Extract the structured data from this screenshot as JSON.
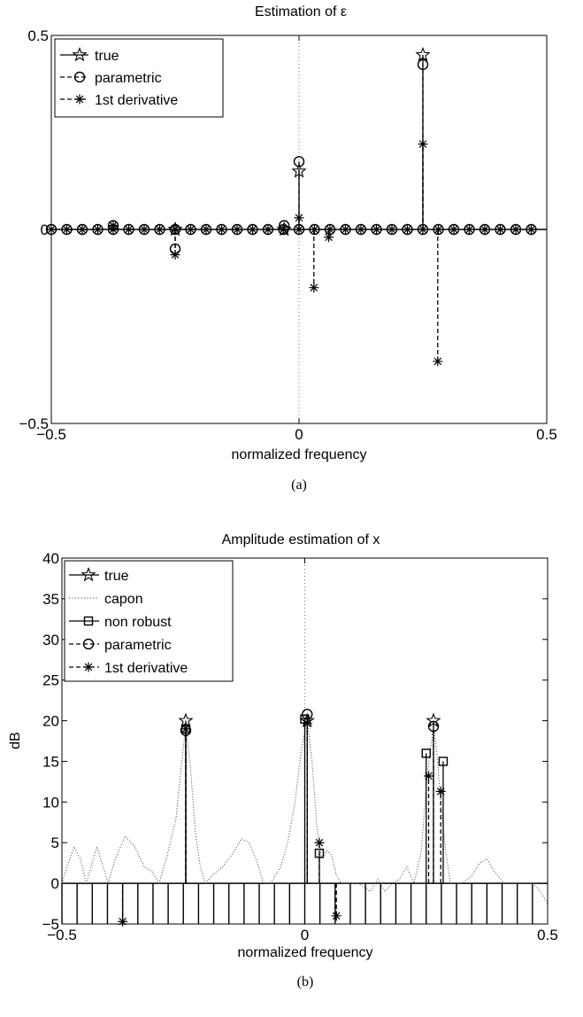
{
  "chart_data": [
    {
      "type": "stem",
      "title": "Estimation of ε",
      "xlabel": "normalized frequency",
      "ylabel": "",
      "caption": "(a)",
      "xlim": [
        -0.5,
        0.5
      ],
      "ylim": [
        -0.5,
        0.5
      ],
      "xticks": [
        "−0.5",
        "0",
        "0.5"
      ],
      "yticks": [
        "−0.5",
        "0",
        "0.5"
      ],
      "grid": "dotted lines at x=0 and y=0.5 only",
      "legend_position": "top-left",
      "legend": [
        {
          "label": "true",
          "line": "solid",
          "marker": "pentagram"
        },
        {
          "label": "parametric",
          "line": "dashed",
          "marker": "circle"
        },
        {
          "label": "1st derivative",
          "line": "dashed",
          "marker": "asterisk"
        }
      ],
      "grid_x": [
        -0.5,
        -0.46875,
        -0.4375,
        -0.40625,
        -0.375,
        -0.34375,
        -0.3125,
        -0.28125,
        -0.25,
        -0.21875,
        -0.1875,
        -0.15625,
        -0.125,
        -0.09375,
        -0.0625,
        -0.03125,
        0,
        0.03125,
        0.0625,
        0.09375,
        0.125,
        0.15625,
        0.1875,
        0.21875,
        0.25,
        0.28125,
        0.3125,
        0.34375,
        0.375,
        0.40625,
        0.4375,
        0.46875
      ],
      "series": [
        {
          "name": "true",
          "points": [
            {
              "x": -0.25,
              "y": 0
            },
            {
              "x": -0.03,
              "y": 0
            },
            {
              "x": 0.0,
              "y": 0.15
            },
            {
              "x": 0.25,
              "y": 0.45
            }
          ]
        },
        {
          "name": "parametric",
          "points": [
            {
              "x": -0.375,
              "y": 0.01
            },
            {
              "x": -0.25,
              "y": -0.05
            },
            {
              "x": -0.03,
              "y": 0.01
            },
            {
              "x": 0.0,
              "y": 0.175
            },
            {
              "x": 0.25,
              "y": 0.425
            }
          ]
        },
        {
          "name": "1st derivative",
          "points": [
            {
              "x": -0.375,
              "y": 0.01
            },
            {
              "x": -0.25,
              "y": -0.065
            },
            {
              "x": 0.0,
              "y": 0.03
            },
            {
              "x": 0.03,
              "y": -0.15
            },
            {
              "x": 0.06,
              "y": -0.02
            },
            {
              "x": 0.25,
              "y": 0.22
            },
            {
              "x": 0.28,
              "y": -0.34
            }
          ]
        }
      ]
    },
    {
      "type": "stem",
      "title": "Amplitude estimation of x",
      "xlabel": "normalized frequency",
      "ylabel": "dB",
      "caption": "(b)",
      "xlim": [
        -0.5,
        0.5
      ],
      "ylim": [
        -5,
        40
      ],
      "xticks": [
        "−0.5",
        "0",
        "0.5"
      ],
      "yticks": [
        "−5",
        "0",
        "5",
        "10",
        "15",
        "20",
        "25",
        "30",
        "35",
        "40"
      ],
      "grid": "dotted line at x=0 only",
      "legend_position": "top-left",
      "legend": [
        {
          "label": "true",
          "line": "solid",
          "marker": "pentagram"
        },
        {
          "label": "capon",
          "line": "dotted",
          "marker": "none"
        },
        {
          "label": "non robust",
          "line": "solid",
          "marker": "square"
        },
        {
          "label": "parametric",
          "line": "dashed",
          "marker": "circle"
        },
        {
          "label": "1st derivative",
          "line": "dashed",
          "marker": "asterisk"
        }
      ],
      "grid_x": [
        -0.5,
        -0.46875,
        -0.4375,
        -0.40625,
        -0.375,
        -0.34375,
        -0.3125,
        -0.28125,
        -0.25,
        -0.21875,
        -0.1875,
        -0.15625,
        -0.125,
        -0.09375,
        -0.0625,
        -0.03125,
        0,
        0.03125,
        0.0625,
        0.09375,
        0.125,
        0.15625,
        0.1875,
        0.21875,
        0.25,
        0.28125,
        0.3125,
        0.34375,
        0.375,
        0.40625,
        0.4375,
        0.46875
      ],
      "floor_db": -5,
      "series": [
        {
          "name": "true",
          "points": [
            {
              "x": -0.245,
              "y": 20
            },
            {
              "x": 0.005,
              "y": 20
            },
            {
              "x": 0.265,
              "y": 20
            }
          ]
        },
        {
          "name": "capon",
          "points": [
            {
              "x": -0.5,
              "y": 0
            },
            {
              "x": -0.49,
              "y": 2
            },
            {
              "x": -0.475,
              "y": 4.5
            },
            {
              "x": -0.462,
              "y": 3
            },
            {
              "x": -0.45,
              "y": 0
            },
            {
              "x": -0.44,
              "y": 2
            },
            {
              "x": -0.428,
              "y": 4.5
            },
            {
              "x": -0.415,
              "y": 2
            },
            {
              "x": -0.405,
              "y": 0
            },
            {
              "x": -0.39,
              "y": 3
            },
            {
              "x": -0.37,
              "y": 5.8
            },
            {
              "x": -0.35,
              "y": 4.5
            },
            {
              "x": -0.33,
              "y": 2
            },
            {
              "x": -0.315,
              "y": 1.5
            },
            {
              "x": -0.3,
              "y": 0
            },
            {
              "x": -0.285,
              "y": 3
            },
            {
              "x": -0.265,
              "y": 8
            },
            {
              "x": -0.255,
              "y": 14
            },
            {
              "x": -0.245,
              "y": 19.5
            },
            {
              "x": -0.235,
              "y": 14
            },
            {
              "x": -0.225,
              "y": 6
            },
            {
              "x": -0.215,
              "y": 2
            },
            {
              "x": -0.205,
              "y": 0
            },
            {
              "x": -0.19,
              "y": 1
            },
            {
              "x": -0.17,
              "y": 2
            },
            {
              "x": -0.15,
              "y": 3.5
            },
            {
              "x": -0.13,
              "y": 5.5
            },
            {
              "x": -0.115,
              "y": 5
            },
            {
              "x": -0.1,
              "y": 3
            },
            {
              "x": -0.085,
              "y": 0
            },
            {
              "x": -0.07,
              "y": 0
            },
            {
              "x": -0.05,
              "y": 2
            },
            {
              "x": -0.035,
              "y": 5
            },
            {
              "x": -0.02,
              "y": 10
            },
            {
              "x": -0.008,
              "y": 16
            },
            {
              "x": 0.005,
              "y": 20.3
            },
            {
              "x": 0.015,
              "y": 15
            },
            {
              "x": 0.025,
              "y": 7
            },
            {
              "x": 0.035,
              "y": 3
            },
            {
              "x": 0.045,
              "y": 4
            },
            {
              "x": 0.055,
              "y": 3.5
            },
            {
              "x": 0.065,
              "y": 1
            },
            {
              "x": 0.075,
              "y": 0
            },
            {
              "x": 0.09,
              "y": 0
            },
            {
              "x": 0.11,
              "y": 0
            },
            {
              "x": 0.135,
              "y": -1
            },
            {
              "x": 0.15,
              "y": 0.5
            },
            {
              "x": 0.165,
              "y": -1
            },
            {
              "x": 0.18,
              "y": 0
            },
            {
              "x": 0.195,
              "y": 0.5
            },
            {
              "x": 0.21,
              "y": 2
            },
            {
              "x": 0.225,
              "y": 0
            },
            {
              "x": 0.24,
              "y": 4
            },
            {
              "x": 0.25,
              "y": 12
            },
            {
              "x": 0.258,
              "y": 16
            },
            {
              "x": 0.265,
              "y": 19.5
            },
            {
              "x": 0.272,
              "y": 16
            },
            {
              "x": 0.28,
              "y": 10
            },
            {
              "x": 0.29,
              "y": 4
            },
            {
              "x": 0.3,
              "y": 0
            },
            {
              "x": 0.325,
              "y": 0
            },
            {
              "x": 0.345,
              "y": 1
            },
            {
              "x": 0.36,
              "y": 2.5
            },
            {
              "x": 0.375,
              "y": 3
            },
            {
              "x": 0.39,
              "y": 1.5
            },
            {
              "x": 0.41,
              "y": 0
            },
            {
              "x": 0.44,
              "y": 0
            },
            {
              "x": 0.47,
              "y": 0
            },
            {
              "x": 0.485,
              "y": -1
            },
            {
              "x": 0.5,
              "y": -2.5
            }
          ]
        },
        {
          "name": "non robust",
          "points": [
            {
              "x": -0.245,
              "y": 19
            },
            {
              "x": 0.0,
              "y": 20.2
            },
            {
              "x": 0.03,
              "y": 3.7
            },
            {
              "x": 0.25,
              "y": 16
            },
            {
              "x": 0.285,
              "y": 15
            }
          ]
        },
        {
          "name": "parametric",
          "points": [
            {
              "x": -0.245,
              "y": 18.8
            },
            {
              "x": 0.005,
              "y": 20.8
            },
            {
              "x": 0.265,
              "y": 19.3
            }
          ]
        },
        {
          "name": "1st derivative",
          "points": [
            {
              "x": -0.375,
              "y": -4.7
            },
            {
              "x": -0.245,
              "y": 19
            },
            {
              "x": 0.005,
              "y": 19.7
            },
            {
              "x": 0.03,
              "y": 5
            },
            {
              "x": 0.065,
              "y": -4
            },
            {
              "x": 0.255,
              "y": 13.2
            },
            {
              "x": 0.28,
              "y": 11.3
            }
          ]
        }
      ]
    }
  ]
}
